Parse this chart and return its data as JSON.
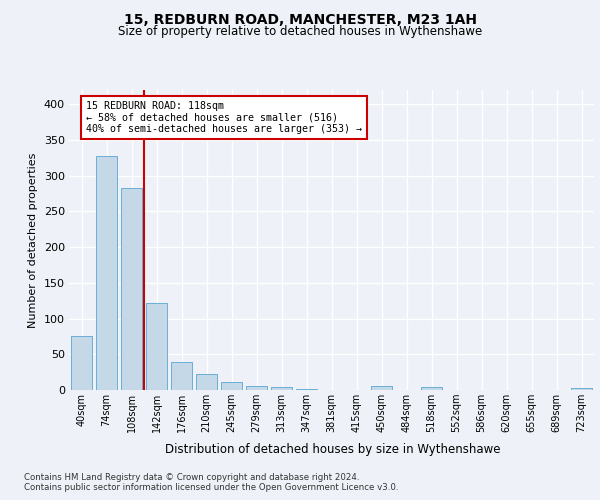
{
  "title1": "15, REDBURN ROAD, MANCHESTER, M23 1AH",
  "title2": "Size of property relative to detached houses in Wythenshawe",
  "xlabel": "Distribution of detached houses by size in Wythenshawe",
  "ylabel": "Number of detached properties",
  "footnote1": "Contains HM Land Registry data © Crown copyright and database right 2024.",
  "footnote2": "Contains public sector information licensed under the Open Government Licence v3.0.",
  "bin_labels": [
    "40sqm",
    "74sqm",
    "108sqm",
    "142sqm",
    "176sqm",
    "210sqm",
    "245sqm",
    "279sqm",
    "313sqm",
    "347sqm",
    "381sqm",
    "415sqm",
    "450sqm",
    "484sqm",
    "518sqm",
    "552sqm",
    "586sqm",
    "620sqm",
    "655sqm",
    "689sqm",
    "723sqm"
  ],
  "bar_values": [
    75,
    328,
    283,
    122,
    39,
    23,
    11,
    5,
    4,
    2,
    0,
    0,
    5,
    0,
    4,
    0,
    0,
    0,
    0,
    0,
    3
  ],
  "bar_color": "#c5d8e8",
  "bar_edge_color": "#6aaed6",
  "vline_x": 2.5,
  "vline_color": "#cc0000",
  "annotation_title": "15 REDBURN ROAD: 118sqm",
  "annotation_line1": "← 58% of detached houses are smaller (516)",
  "annotation_line2": "40% of semi-detached houses are larger (353) →",
  "annotation_box_color": "#cc0000",
  "ylim": [
    0,
    420
  ],
  "yticks": [
    0,
    50,
    100,
    150,
    200,
    250,
    300,
    350,
    400
  ],
  "background_color": "#eef2f8",
  "grid_color": "#ffffff"
}
